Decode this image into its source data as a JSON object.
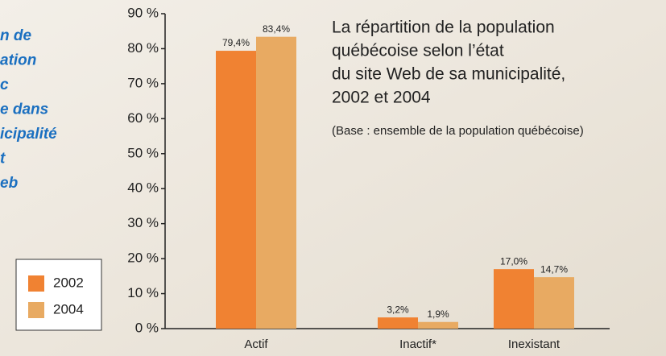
{
  "side_text": [
    "n de",
    "ation",
    "c",
    "e dans",
    "icipalité",
    "t",
    "eb"
  ],
  "chart_data": {
    "type": "bar",
    "title": [
      "La répartition de la population",
      "québécoise selon l’état",
      "du site Web de sa municipalité,",
      "2002 et 2004"
    ],
    "subtitle": "(Base : ensemble de la population québécoise)",
    "categories": [
      "Actif",
      "Inactif*",
      "Inexistant"
    ],
    "series": [
      {
        "name": "2002",
        "color": "#f08232",
        "values": [
          79.4,
          3.2,
          17.0
        ],
        "value_labels": [
          "79,4%",
          "3,2%",
          "17,0%"
        ]
      },
      {
        "name": "2004",
        "color": "#e8aa62",
        "values": [
          83.4,
          1.9,
          14.7
        ],
        "value_labels": [
          "83,4%",
          "1,9%",
          "14,7%"
        ]
      }
    ],
    "ylim": [
      0,
      90
    ],
    "yticks": [
      {
        "value": 0,
        "label": "0 %"
      },
      {
        "value": 10,
        "label": "10 %"
      },
      {
        "value": 20,
        "label": "20 %"
      },
      {
        "value": 30,
        "label": "30 %"
      },
      {
        "value": 40,
        "label": "40 %"
      },
      {
        "value": 50,
        "label": "50 %"
      },
      {
        "value": 60,
        "label": "60 %"
      },
      {
        "value": 70,
        "label": "70 %"
      },
      {
        "value": 80,
        "label": "80 %"
      },
      {
        "value": 90,
        "label": "90 %"
      }
    ]
  }
}
